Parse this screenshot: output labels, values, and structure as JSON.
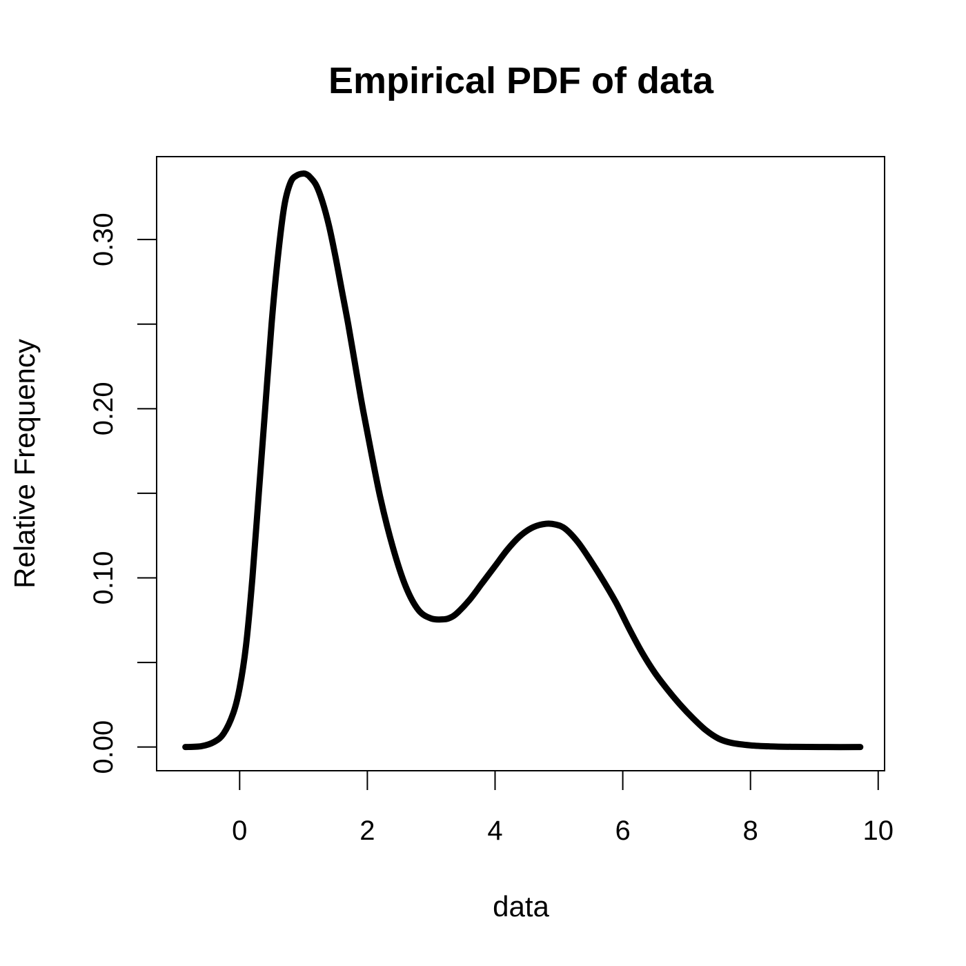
{
  "chart_data": {
    "type": "line",
    "title": "Empirical PDF of data",
    "xlabel": "data",
    "ylabel": "Relative Frequency",
    "xlim": [
      -1.3,
      10.1
    ],
    "ylim": [
      -0.014,
      0.349
    ],
    "x_ticks": [
      0,
      2,
      4,
      6,
      8,
      10
    ],
    "x_tick_labels": [
      "0",
      "2",
      "4",
      "6",
      "8",
      "10"
    ],
    "y_ticks": [
      0.0,
      0.05,
      0.1,
      0.15,
      0.2,
      0.25,
      0.3
    ],
    "y_tick_labels": [
      "0.00",
      "",
      "0.10",
      "",
      "0.20",
      "",
      "0.30"
    ],
    "grid": false,
    "box": true,
    "line_color": "#000000",
    "series": [
      {
        "x": [
          -0.85,
          -0.6,
          -0.4,
          -0.25,
          -0.1,
          0.0,
          0.1,
          0.2,
          0.3,
          0.4,
          0.5,
          0.6,
          0.7,
          0.8,
          0.9,
          1.0,
          1.05,
          1.1,
          1.2,
          1.3,
          1.4,
          1.5,
          1.6,
          1.7,
          1.8,
          1.9,
          2.0,
          2.2,
          2.4,
          2.6,
          2.8,
          3.0,
          3.2,
          3.3,
          3.4,
          3.6,
          3.8,
          4.0,
          4.2,
          4.4,
          4.6,
          4.8,
          4.95,
          5.1,
          5.3,
          5.5,
          5.7,
          5.9,
          6.1,
          6.3,
          6.5,
          6.7,
          6.9,
          7.1,
          7.3,
          7.5,
          7.7,
          8.0,
          8.3,
          8.7,
          9.2,
          9.72
        ],
        "y": [
          0.0,
          0.0005,
          0.003,
          0.008,
          0.02,
          0.035,
          0.06,
          0.1,
          0.15,
          0.2,
          0.25,
          0.29,
          0.32,
          0.334,
          0.338,
          0.339,
          0.3385,
          0.337,
          0.332,
          0.322,
          0.308,
          0.29,
          0.27,
          0.25,
          0.228,
          0.206,
          0.186,
          0.148,
          0.118,
          0.095,
          0.081,
          0.076,
          0.0755,
          0.0765,
          0.079,
          0.087,
          0.097,
          0.107,
          0.117,
          0.125,
          0.13,
          0.132,
          0.1315,
          0.129,
          0.121,
          0.11,
          0.098,
          0.085,
          0.07,
          0.056,
          0.044,
          0.034,
          0.025,
          0.017,
          0.01,
          0.005,
          0.0025,
          0.001,
          0.0004,
          0.0001,
          0.0,
          0.0
        ]
      }
    ]
  }
}
